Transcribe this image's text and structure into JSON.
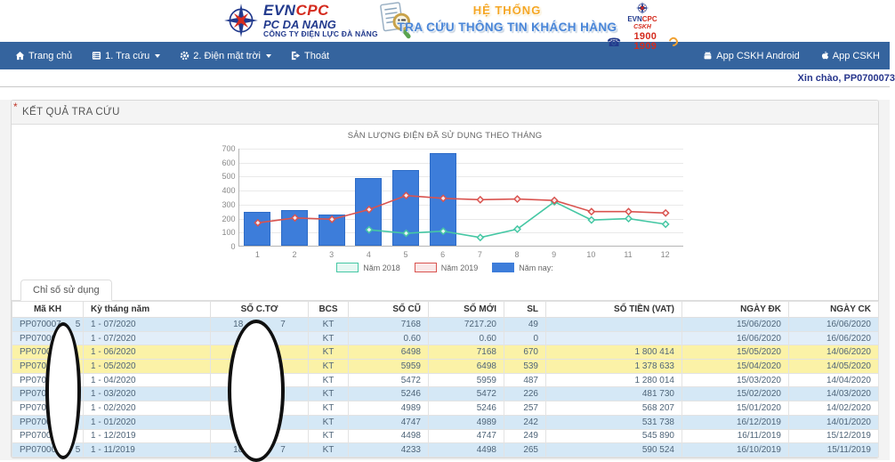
{
  "header": {
    "logo": {
      "brand_evn": "EVN",
      "brand_cpc": "CPC",
      "line2": "PC DA NANG",
      "line3": "CÔNG TY ĐIỆN LỰC ĐÀ NẴNG"
    },
    "system": {
      "line1": "HỆ THỐNG",
      "line2": "TRA CỨU THÔNG TIN KHÁCH HÀNG"
    },
    "cskh": {
      "brand_evn": "EVN",
      "brand_cpc": "CPC",
      "sub": "CSKH",
      "phone": "1900 1909"
    }
  },
  "navbar": {
    "items": [
      {
        "icon": "home",
        "label": "Trang chủ",
        "caret": false
      },
      {
        "icon": "list",
        "label": "1. Tra cứu",
        "caret": true
      },
      {
        "icon": "gear",
        "label": "2. Điện mặt trời",
        "caret": true
      },
      {
        "icon": "signout",
        "label": "Thoát",
        "caret": false
      }
    ],
    "right_items": [
      {
        "icon": "android",
        "label": "App CSKH Android"
      },
      {
        "icon": "apple",
        "label": "App CSKH"
      }
    ]
  },
  "greeting": "Xin chào, PP0700073",
  "panel": {
    "title": "KẾT QUẢ TRA CỨU",
    "required_mark": "*"
  },
  "chart_data": {
    "type": "bar",
    "title": "SẢN LƯỢNG ĐIỆN ĐÃ SỬ DỤNG THEO THÁNG",
    "categories": [
      "1",
      "2",
      "3",
      "4",
      "5",
      "6",
      "7",
      "8",
      "9",
      "10",
      "11",
      "12"
    ],
    "xlabel": "",
    "ylabel": "",
    "ylim": [
      0,
      700
    ],
    "ytick_step": 100,
    "grid": true,
    "legend_position": "bottom",
    "series": [
      {
        "name": "Năm 2018",
        "type": "line",
        "color": "#45c7a4",
        "values": [
          null,
          null,
          null,
          120,
          95,
          110,
          65,
          125,
          320,
          190,
          200,
          160
        ]
      },
      {
        "name": "Năm 2019",
        "type": "line",
        "color": "#d9534f",
        "values": [
          170,
          205,
          195,
          265,
          365,
          345,
          335,
          340,
          330,
          250,
          250,
          240
        ]
      },
      {
        "name": "Năm nay:",
        "type": "bar",
        "color": "#3d7dda",
        "values": [
          240,
          255,
          225,
          485,
          540,
          665,
          null,
          null,
          null,
          null,
          null,
          null
        ]
      }
    ]
  },
  "tabs": [
    {
      "label": "Chỉ số sử dụng",
      "active": true
    }
  ],
  "table": {
    "columns": [
      {
        "key": "ma_kh",
        "label": "Mã KH",
        "align": "center"
      },
      {
        "key": "ky_thang_nam",
        "label": "Kỳ tháng năm",
        "align": "left"
      },
      {
        "key": "so_cto",
        "label": "SỐ C.TƠ",
        "align": "center"
      },
      {
        "key": "bcs",
        "label": "BCS",
        "align": "center"
      },
      {
        "key": "so_cu",
        "label": "SỐ CŨ",
        "align": "right"
      },
      {
        "key": "so_moi",
        "label": "SỐ MỚI",
        "align": "right"
      },
      {
        "key": "sl",
        "label": "SL",
        "align": "right"
      },
      {
        "key": "so_tien_vat",
        "label": "SỐ TIỀN (VAT)",
        "align": "right"
      },
      {
        "key": "ngay_dk",
        "label": "NGÀY ĐK",
        "align": "right"
      },
      {
        "key": "ngay_ck",
        "label": "NGÀY CK",
        "align": "right"
      }
    ],
    "rows": [
      {
        "ma_kh_pre": "PP070007",
        "ma_kh_suf": "5",
        "ky_thang_nam": "1 - 07/2020",
        "so_cto_pre": "18",
        "so_cto_suf": "7",
        "bcs": "KT",
        "so_cu": "7168",
        "so_moi": "7217.20",
        "sl": "49",
        "so_tien_vat": "",
        "ngay_dk": "15/06/2020",
        "ngay_ck": "16/06/2020",
        "variant": "blue"
      },
      {
        "ma_kh_pre": "PP07000",
        "ma_kh_suf": "",
        "ky_thang_nam": "1 - 07/2020",
        "so_cto_pre": "",
        "so_cto_suf": "",
        "bcs": "KT",
        "so_cu": "0.60",
        "so_moi": "0.60",
        "sl": "0",
        "so_tien_vat": "",
        "ngay_dk": "16/06/2020",
        "ngay_ck": "16/06/2020",
        "variant": "blue2"
      },
      {
        "ma_kh_pre": "PP0700",
        "ma_kh_suf": "",
        "ky_thang_nam": "1 - 06/2020",
        "so_cto_pre": "",
        "so_cto_suf": "",
        "bcs": "KT",
        "so_cu": "6498",
        "so_moi": "7168",
        "sl": "670",
        "so_tien_vat": "1 800 414",
        "ngay_dk": "15/05/2020",
        "ngay_ck": "14/06/2020",
        "variant": "yellow"
      },
      {
        "ma_kh_pre": "PP070",
        "ma_kh_suf": "",
        "ky_thang_nam": "1 - 05/2020",
        "so_cto_pre": "",
        "so_cto_suf": "",
        "bcs": "KT",
        "so_cu": "5959",
        "so_moi": "6498",
        "sl": "539",
        "so_tien_vat": "1 378 633",
        "ngay_dk": "15/04/2020",
        "ngay_ck": "14/05/2020",
        "variant": "yellow"
      },
      {
        "ma_kh_pre": "PP070",
        "ma_kh_suf": "",
        "ky_thang_nam": "1 - 04/2020",
        "so_cto_pre": "",
        "so_cto_suf": "",
        "bcs": "KT",
        "so_cu": "5472",
        "so_moi": "5959",
        "sl": "487",
        "so_tien_vat": "1 280 014",
        "ngay_dk": "15/03/2020",
        "ngay_ck": "14/04/2020",
        "variant": "white"
      },
      {
        "ma_kh_pre": "PP0700",
        "ma_kh_suf": "",
        "ky_thang_nam": "1 - 03/2020",
        "so_cto_pre": "",
        "so_cto_suf": "",
        "bcs": "KT",
        "so_cu": "5246",
        "so_moi": "5472",
        "sl": "226",
        "so_tien_vat": "481 730",
        "ngay_dk": "15/02/2020",
        "ngay_ck": "14/03/2020",
        "variant": "blue"
      },
      {
        "ma_kh_pre": "PP0700",
        "ma_kh_suf": "",
        "ky_thang_nam": "1 - 02/2020",
        "so_cto_pre": "",
        "so_cto_suf": "",
        "bcs": "KT",
        "so_cu": "4989",
        "so_moi": "5246",
        "sl": "257",
        "so_tien_vat": "568 207",
        "ngay_dk": "15/01/2020",
        "ngay_ck": "14/02/2020",
        "variant": "white"
      },
      {
        "ma_kh_pre": "PP07000",
        "ma_kh_suf": "",
        "ky_thang_nam": "1 - 01/2020",
        "so_cto_pre": "",
        "so_cto_suf": "",
        "bcs": "KT",
        "so_cu": "4747",
        "so_moi": "4989",
        "sl": "242",
        "so_tien_vat": "531 738",
        "ngay_dk": "16/12/2019",
        "ngay_ck": "14/01/2020",
        "variant": "blue"
      },
      {
        "ma_kh_pre": "PP07000",
        "ma_kh_suf": "",
        "ky_thang_nam": "1 - 12/2019",
        "so_cto_pre": "",
        "so_cto_suf": "",
        "bcs": "KT",
        "so_cu": "4498",
        "so_moi": "4747",
        "sl": "249",
        "so_tien_vat": "545 890",
        "ngay_dk": "16/11/2019",
        "ngay_ck": "15/12/2019",
        "variant": "white"
      },
      {
        "ma_kh_pre": "PP070007",
        "ma_kh_suf": "5",
        "ky_thang_nam": "1 - 11/2019",
        "so_cto_pre": "18",
        "so_cto_suf": "7",
        "bcs": "KT",
        "so_cu": "4233",
        "so_moi": "4498",
        "sl": "265",
        "so_tien_vat": "590 524",
        "ngay_dk": "16/10/2019",
        "ngay_ck": "15/11/2019",
        "variant": "blue"
      }
    ]
  }
}
